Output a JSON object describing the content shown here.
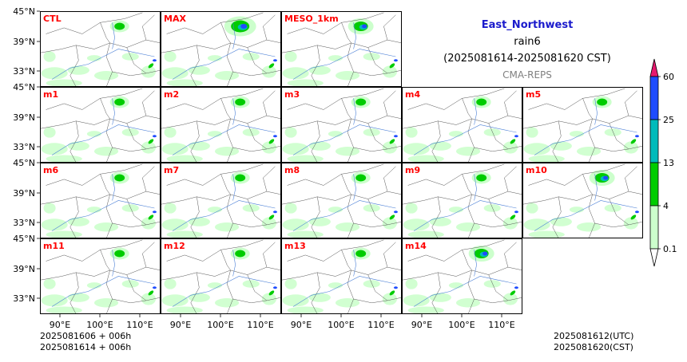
{
  "header": {
    "region": "East_Northwest",
    "variable": "rain6",
    "period": "(2025081614-2025081620 CST)",
    "system": "CMA-REPS",
    "region_color": "#1a1acc",
    "system_color": "#808080"
  },
  "panels": [
    {
      "label": "CTL",
      "intensity": 1
    },
    {
      "label": "MAX",
      "intensity": 3
    },
    {
      "label": "MESO_1km",
      "intensity": 2
    },
    {
      "label": "m1",
      "intensity": 1
    },
    {
      "label": "m2",
      "intensity": 1
    },
    {
      "label": "m3",
      "intensity": 1
    },
    {
      "label": "m4",
      "intensity": 1
    },
    {
      "label": "m5",
      "intensity": 1
    },
    {
      "label": "m6",
      "intensity": 1
    },
    {
      "label": "m7",
      "intensity": 1
    },
    {
      "label": "m8",
      "intensity": 1
    },
    {
      "label": "m9",
      "intensity": 1
    },
    {
      "label": "m10",
      "intensity": 2
    },
    {
      "label": "m11",
      "intensity": 1
    },
    {
      "label": "m12",
      "intensity": 1
    },
    {
      "label": "m13",
      "intensity": 1
    },
    {
      "label": "m14",
      "intensity": 2
    }
  ],
  "panel_label_color": "#ff0000",
  "axes": {
    "lat_ticks": [
      "45°N",
      "39°N",
      "33°N"
    ],
    "lon_ticks": [
      "90°E",
      "100°E",
      "110°E"
    ]
  },
  "colorbar": {
    "levels": [
      "0.1",
      "4",
      "13",
      "25",
      "60"
    ],
    "colors": [
      "#ccffcc",
      "#00cc00",
      "#00bbbb",
      "#1f4cff",
      "#e6186e"
    ]
  },
  "footer": {
    "init_line_1": "2025081606  +  006h",
    "init_line_2": "2025081614  +  006h",
    "valid_utc": "2025081612(UTC)",
    "valid_cst": "2025081620(CST)"
  }
}
